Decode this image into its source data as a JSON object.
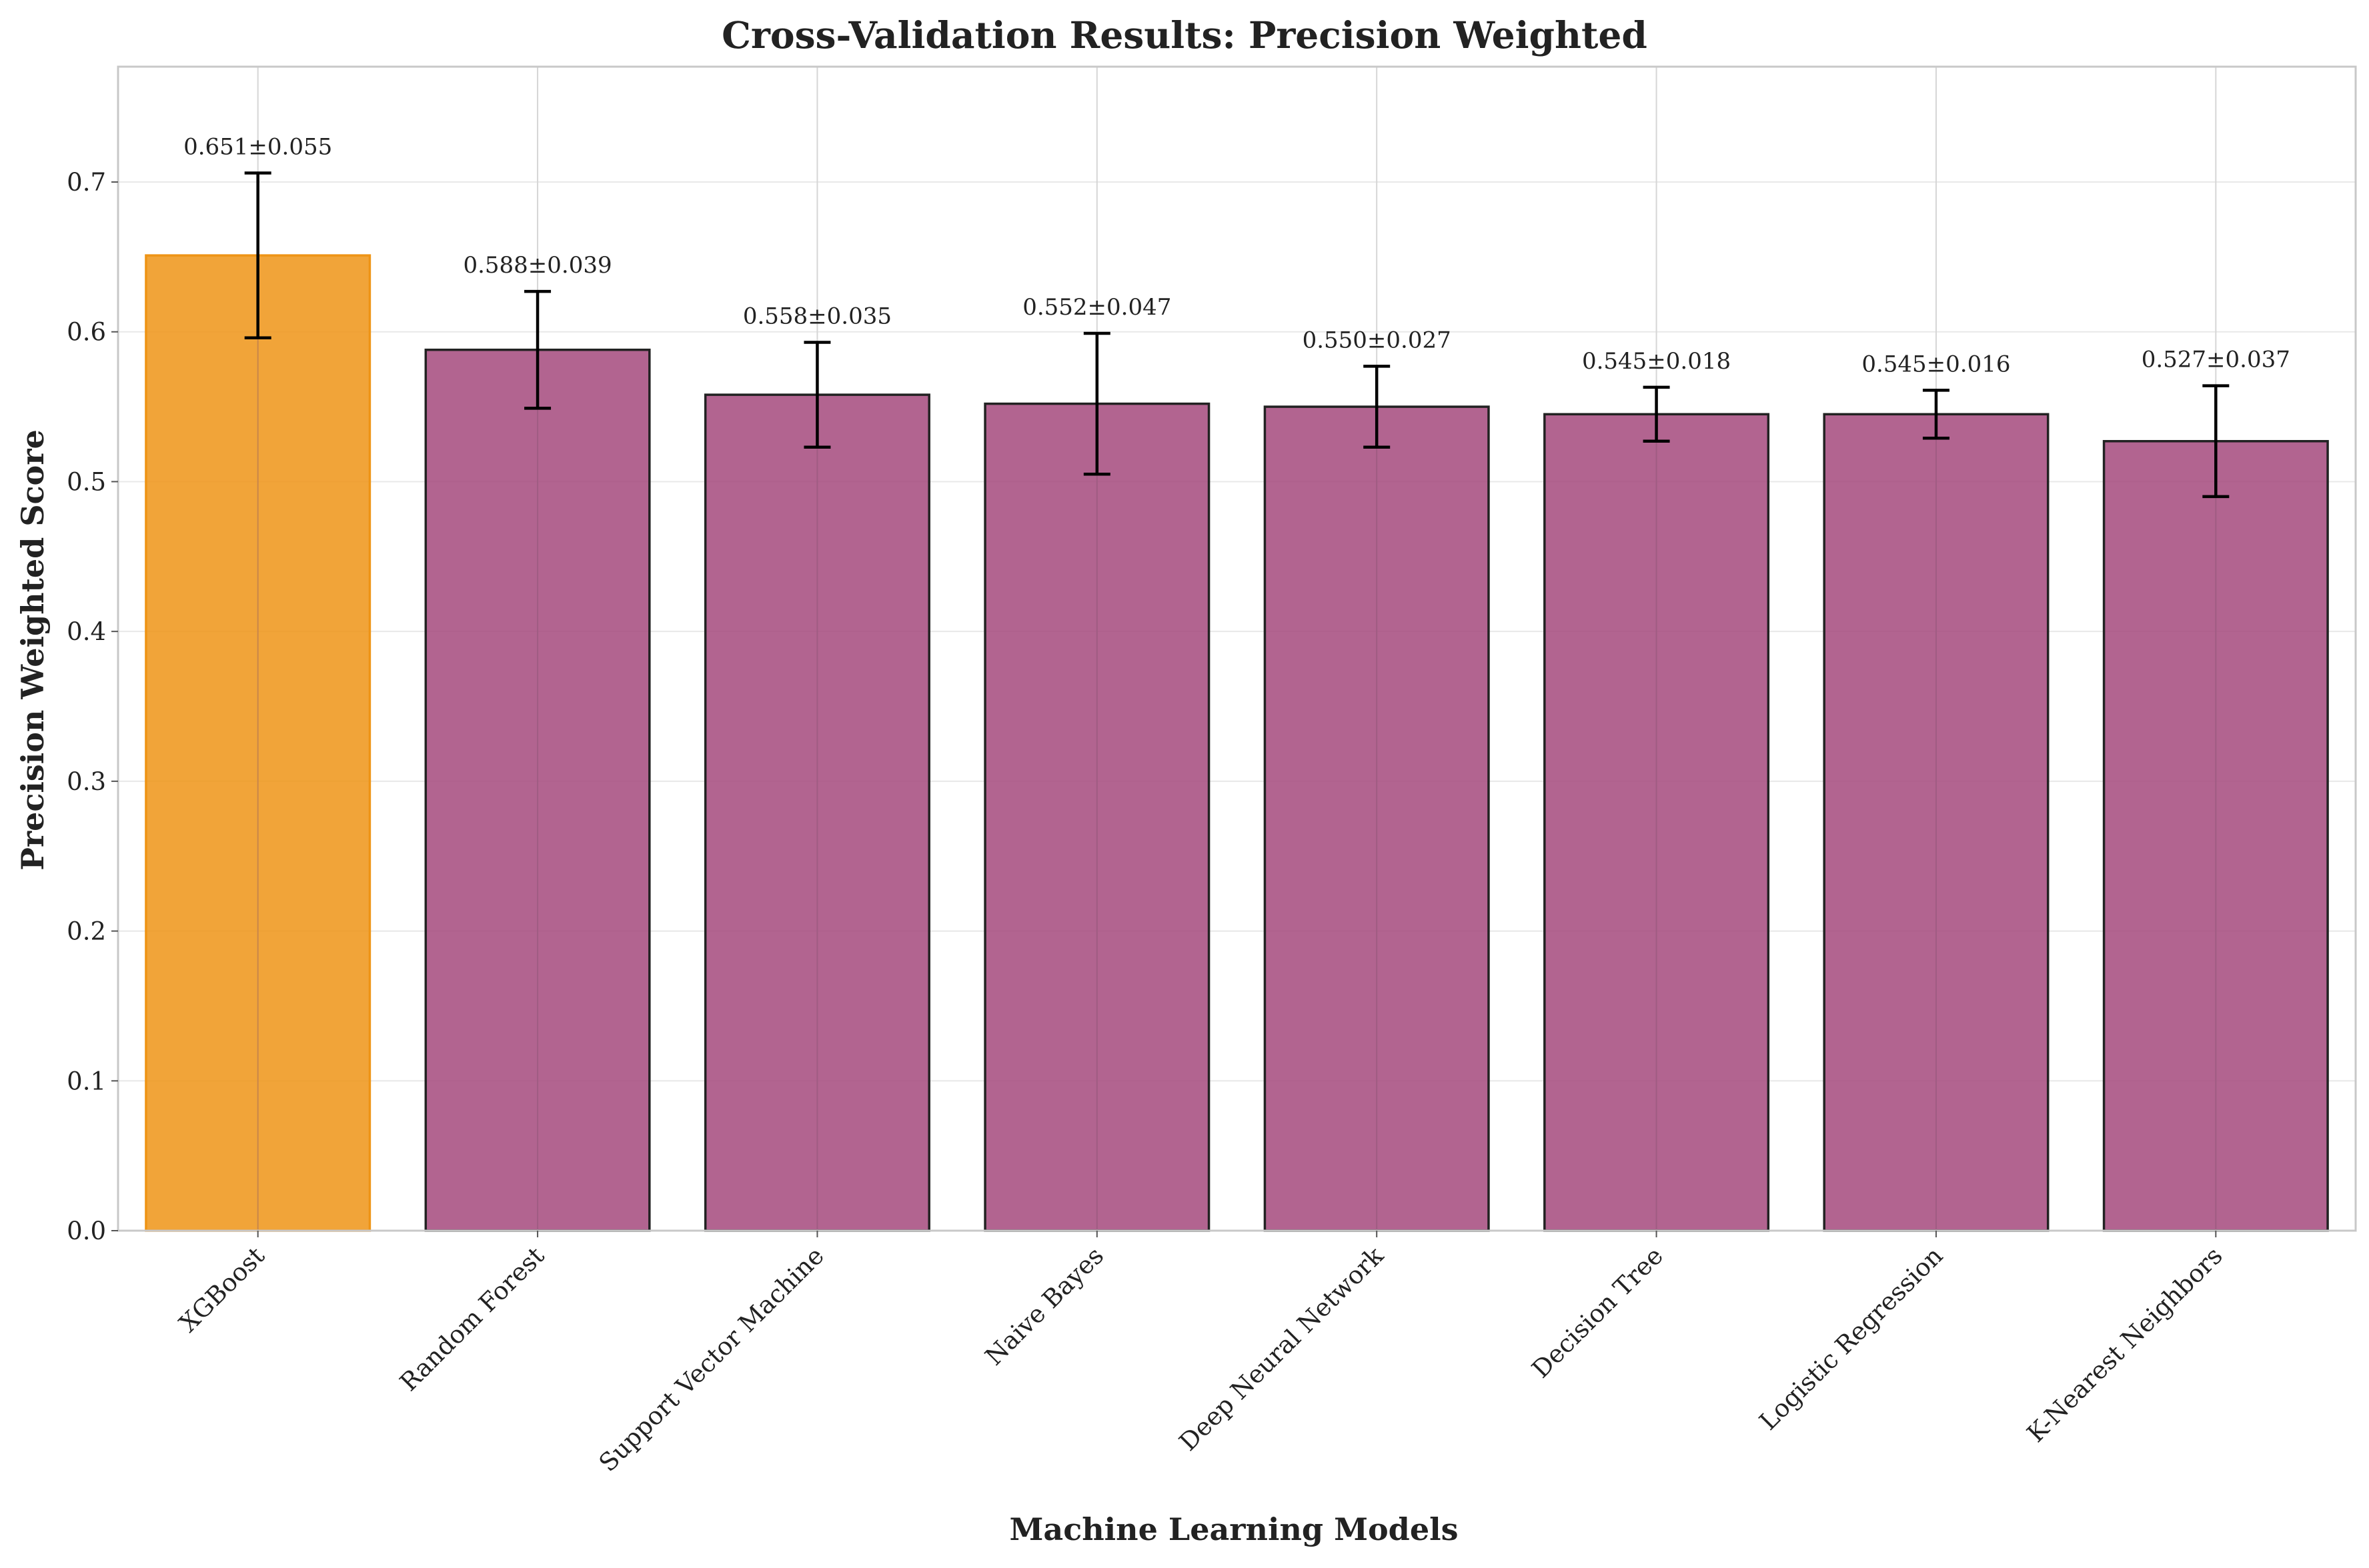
{
  "chart_data": {
    "type": "bar",
    "title": "Cross-Validation Results: Precision Weighted",
    "xlabel": "Machine Learning Models",
    "ylabel": "Precision Weighted Score",
    "ylim": [
      0,
      0.777
    ],
    "yticks": [
      0.0,
      0.1,
      0.2,
      0.3,
      0.4,
      0.5,
      0.6,
      0.7
    ],
    "ytick_labels": [
      "0.0",
      "0.1",
      "0.2",
      "0.3",
      "0.4",
      "0.5",
      "0.6",
      "0.7"
    ],
    "grid": true,
    "categories": [
      "XGBoost",
      "Random Forest",
      "Support Vector Machine",
      "Naive Bayes",
      "Deep Neural Network",
      "Decision Tree",
      "Logistic Regression",
      "K-Nearest Neighbors"
    ],
    "values": [
      0.651,
      0.588,
      0.558,
      0.552,
      0.55,
      0.545,
      0.545,
      0.527
    ],
    "errors": [
      0.055,
      0.039,
      0.035,
      0.047,
      0.027,
      0.018,
      0.016,
      0.037
    ],
    "data_labels": [
      "0.651±0.055",
      "0.588±0.039",
      "0.558±0.035",
      "0.552±0.047",
      "0.550±0.027",
      "0.545±0.018",
      "0.545±0.016",
      "0.527±0.037"
    ],
    "bar_colors": [
      "#ee9416",
      "#a4497d",
      "#a4497d",
      "#a4497d",
      "#a4497d",
      "#a4497d",
      "#a4497d",
      "#a4497d"
    ],
    "bar_edge_colors": [
      "#ee9416",
      "#222222",
      "#222222",
      "#222222",
      "#222222",
      "#222222",
      "#222222",
      "#222222"
    ],
    "highlight_color": "#ee9416",
    "default_color": "#a4497d"
  }
}
